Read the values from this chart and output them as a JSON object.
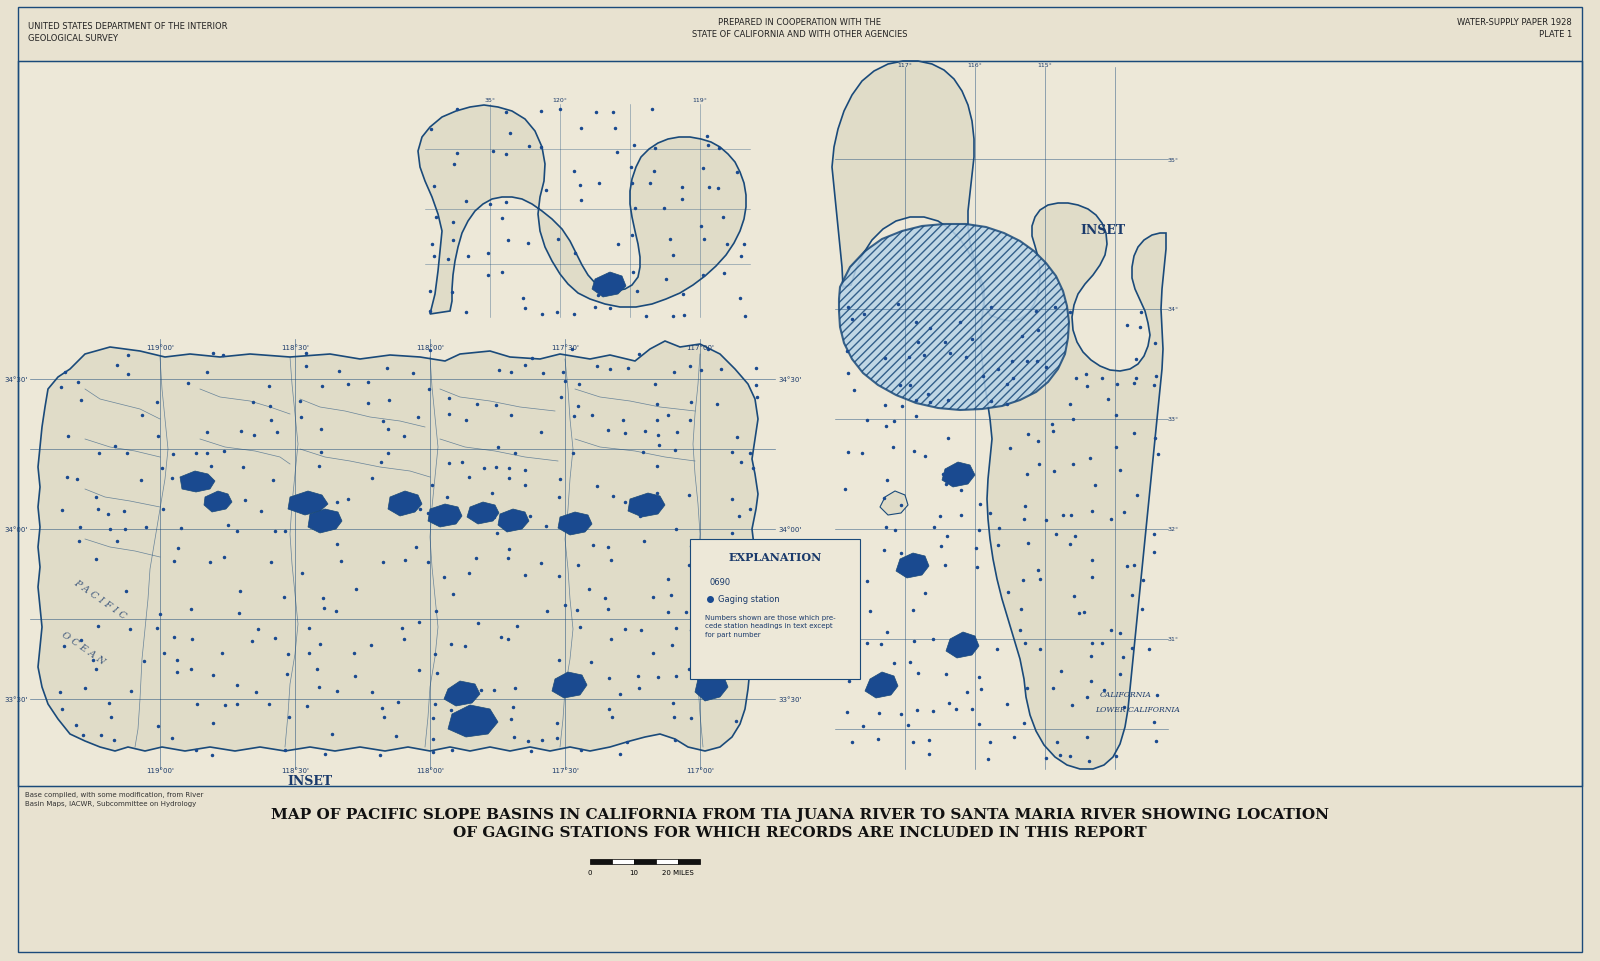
{
  "bg_color": "#e8e2d0",
  "map_bg": "#ede8d8",
  "paper_bg": "#ede8d8",
  "border_color": "#1a4a7a",
  "text_color": "#1a3a6b",
  "map_line_color": "#1a4a7a",
  "blue_fill": "#1a4a90",
  "blue_fill_light": "#5080b0",
  "hatch_blue": "#4a80c0",
  "top_left_text1": "UNITED STATES DEPARTMENT OF THE INTERIOR",
  "top_left_text2": "GEOLOGICAL SURVEY",
  "top_center_text1": "PREPARED IN COOPERATION WITH THE",
  "top_center_text2": "STATE OF CALIFORNIA AND WITH OTHER AGENCIES",
  "top_right_text1": "WATER-SUPPLY PAPER 1928",
  "top_right_text2": "PLATE 1",
  "bottom_title1": "MAP OF PACIFIC SLOPE BASINS IN CALIFORNIA FROM TIA JUANA RIVER TO SANTA MARIA RIVER SHOWING LOCATION",
  "bottom_title2": "OF GAGING STATIONS FOR WHICH RECORDS ARE INCLUDED IN THIS REPORT",
  "bottom_left_note": "Base compiled, with some modification, from River\nBasin Maps, IACWR, Subcommittee on Hydrology",
  "inset_label": "INSET",
  "pacific_ocean_text": "P A C I F I C\n\n    O C E A N",
  "california_text": "CALIFORNIA\nLOWER CALIFORNIA",
  "explanation_title": "EXPLANATION"
}
